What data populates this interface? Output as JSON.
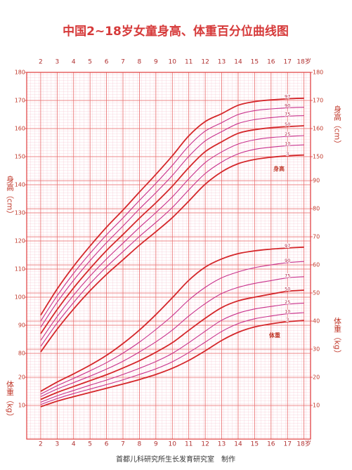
{
  "chart_data": {
    "type": "line",
    "title": "中国2~18岁女童身高、体重百分位曲线图",
    "footer": "首都儿科研究所生长发育研究室　制作",
    "y_label": "身高（cm）",
    "y2_label": "体重（kg）",
    "annotations": [
      "身高",
      "体重"
    ],
    "x": [
      2,
      3,
      4,
      5,
      6,
      7,
      8,
      9,
      10,
      11,
      12,
      13,
      14,
      15,
      16,
      17,
      18
    ],
    "xlim": [
      1.15,
      18.4
    ],
    "xticks": [
      2,
      3,
      4,
      5,
      6,
      7,
      8,
      9,
      10,
      11,
      12,
      13,
      14,
      15,
      16,
      17,
      {
        "value": 18,
        "label": "18岁"
      }
    ],
    "ylim": [
      49.5,
      180
    ],
    "yticks": [
      80,
      90,
      100,
      110,
      120,
      130,
      140,
      150,
      160,
      170,
      180
    ],
    "yticks_right": [
      150,
      160,
      170,
      180
    ],
    "y2lim": [
      -2,
      128.5
    ],
    "y2ticks_left": [
      10,
      20
    ],
    "y2ticks": [
      10,
      20,
      30,
      40,
      50,
      60,
      70,
      80,
      90
    ],
    "grid": true,
    "series": [
      {
        "name": "3",
        "color": "#d4262a",
        "values": [
          80.5,
          88.6,
          95.8,
          102.3,
          108.1,
          113.3,
          118.5,
          123.3,
          128.3,
          134.2,
          140.2,
          144.6,
          147.5,
          149.0,
          149.8,
          150.3,
          150.6
        ]
      },
      {
        "name": "10",
        "color": "#c8318c",
        "values": [
          82.5,
          90.8,
          98.1,
          104.8,
          110.8,
          116.2,
          121.6,
          126.6,
          131.9,
          138.2,
          144.0,
          148.1,
          151.0,
          152.6,
          153.4,
          153.9,
          154.2
        ]
      },
      {
        "name": "25",
        "color": "#c8318c",
        "values": [
          84.6,
          93.1,
          100.7,
          107.5,
          113.6,
          119.2,
          124.8,
          130.1,
          135.7,
          142.1,
          147.9,
          151.7,
          154.5,
          156.0,
          156.8,
          157.2,
          157.5
        ]
      },
      {
        "name": "50",
        "color": "#d4262a",
        "values": [
          87.0,
          95.6,
          103.3,
          110.2,
          116.6,
          122.3,
          128.1,
          133.6,
          139.5,
          146.1,
          151.8,
          155.3,
          158.3,
          159.6,
          160.3,
          160.7,
          161.0
        ]
      },
      {
        "name": "75",
        "color": "#c8318c",
        "values": [
          89.3,
          98.2,
          106.0,
          113.0,
          119.4,
          125.3,
          131.4,
          137.2,
          143.3,
          150.1,
          155.6,
          158.9,
          161.8,
          163.2,
          163.9,
          164.4,
          164.6
        ]
      },
      {
        "name": "90",
        "color": "#c8318c",
        "values": [
          91.5,
          100.5,
          108.5,
          115.6,
          122.2,
          128.2,
          134.4,
          140.5,
          146.9,
          153.8,
          159.1,
          162.1,
          165.0,
          166.4,
          167.0,
          167.4,
          167.6
        ]
      },
      {
        "name": "97",
        "color": "#d4262a",
        "values": [
          93.6,
          102.9,
          111.0,
          118.2,
          124.9,
          131.0,
          137.4,
          143.7,
          150.3,
          157.4,
          162.5,
          165.3,
          168.3,
          169.6,
          170.2,
          170.6,
          170.8
        ]
      },
      {
        "name": "3",
        "color": "#d4262a",
        "axis": "y2",
        "values": [
          9.5,
          11.5,
          13.1,
          14.6,
          16.1,
          17.6,
          19.2,
          21.0,
          23.2,
          26.0,
          29.4,
          33.1,
          36.0,
          37.9,
          39.0,
          39.8,
          40.2
        ]
      },
      {
        "name": "10",
        "color": "#c8318c",
        "axis": "y2",
        "values": [
          10.3,
          12.4,
          14.2,
          15.8,
          17.4,
          19.1,
          21.0,
          23.0,
          25.5,
          28.8,
          32.5,
          36.3,
          39.1,
          40.8,
          41.8,
          42.6,
          43.0
        ]
      },
      {
        "name": "25",
        "color": "#c8318c",
        "axis": "y2",
        "values": [
          11.1,
          13.4,
          15.3,
          17.2,
          19.0,
          21.0,
          23.2,
          25.6,
          28.5,
          32.3,
          36.4,
          40.3,
          42.8,
          44.3,
          45.2,
          46.0,
          46.4
        ]
      },
      {
        "name": "50",
        "color": "#d4262a",
        "axis": "y2",
        "values": [
          12.1,
          14.6,
          16.7,
          18.8,
          20.9,
          23.3,
          25.9,
          28.9,
          32.3,
          36.7,
          41.0,
          44.8,
          47.2,
          48.5,
          49.6,
          50.6,
          51.0
        ]
      },
      {
        "name": "75",
        "color": "#c8318c",
        "axis": "y2",
        "values": [
          13.1,
          15.8,
          18.1,
          20.4,
          22.9,
          25.7,
          29.0,
          32.6,
          36.8,
          41.8,
          46.2,
          49.8,
          52.0,
          53.4,
          54.4,
          55.4,
          55.8
        ]
      },
      {
        "name": "90",
        "color": "#c8318c",
        "axis": "y2",
        "values": [
          14.0,
          17.0,
          19.6,
          22.3,
          25.2,
          28.6,
          32.5,
          37.0,
          41.9,
          47.5,
          52.0,
          55.4,
          57.5,
          59.0,
          60.0,
          60.8,
          61.2
        ]
      },
      {
        "name": "97",
        "color": "#d4262a",
        "axis": "y2",
        "values": [
          15.0,
          18.3,
          21.2,
          24.3,
          27.8,
          32.0,
          36.8,
          42.3,
          48.3,
          54.5,
          59.2,
          62.1,
          64.0,
          65.0,
          65.6,
          66.0,
          66.3
        ]
      }
    ]
  }
}
